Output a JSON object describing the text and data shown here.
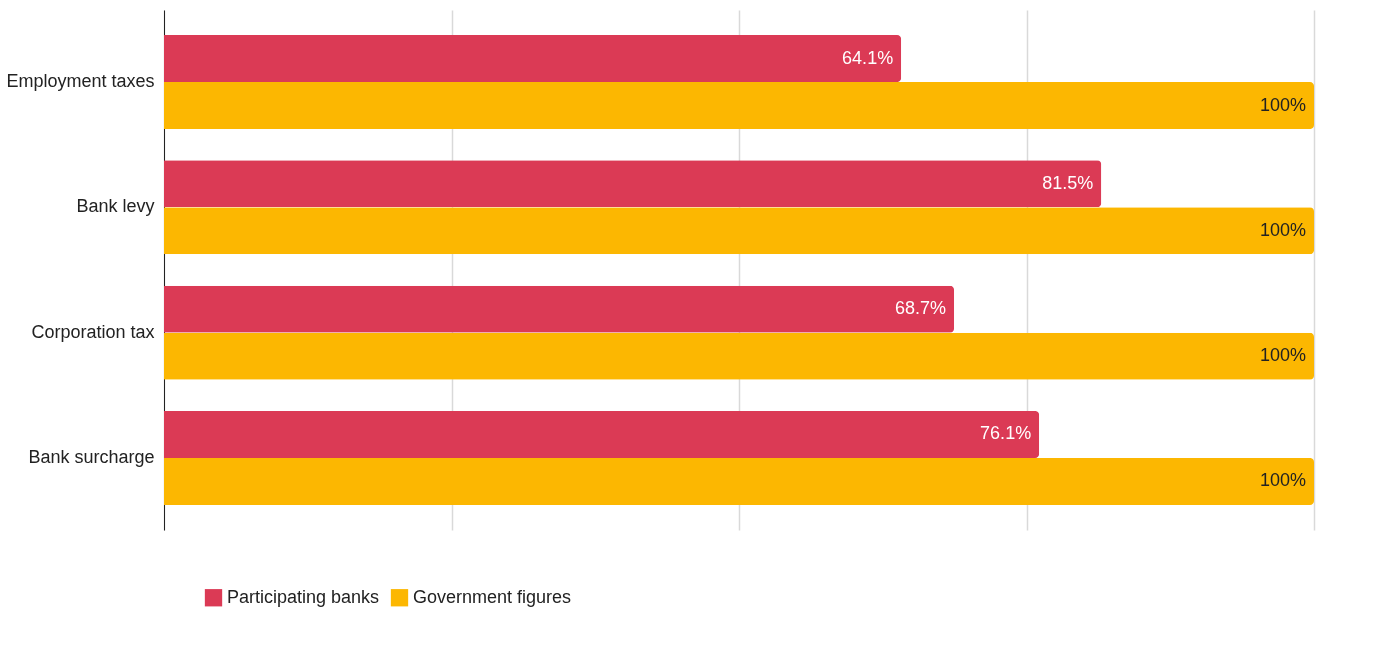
{
  "chart_data": {
    "type": "bar",
    "orientation": "horizontal",
    "categories": [
      "Employment taxes",
      "Bank levy",
      "Corporation tax",
      "Bank surcharge"
    ],
    "series": [
      {
        "name": "Participating banks",
        "color": "#db3a55",
        "values": [
          64.1,
          81.5,
          68.7,
          76.1
        ],
        "value_labels": [
          "64.1%",
          "81.5%",
          "68.7%",
          "76.1%"
        ]
      },
      {
        "name": "Government figures",
        "color": "#fcb701",
        "values": [
          100,
          100,
          100,
          100
        ],
        "value_labels": [
          "100%",
          "100%",
          "100%",
          "100%"
        ]
      }
    ],
    "xlim": [
      0,
      100
    ],
    "xticks": [
      {
        "value": 0,
        "label": null
      },
      {
        "value": 25,
        "label": null
      },
      {
        "value": 50,
        "label": null
      },
      {
        "value": 75,
        "label": null
      },
      {
        "value": 100,
        "label": null
      }
    ],
    "tick_labels": "y",
    "grid": "x",
    "legend": "bottom"
  }
}
